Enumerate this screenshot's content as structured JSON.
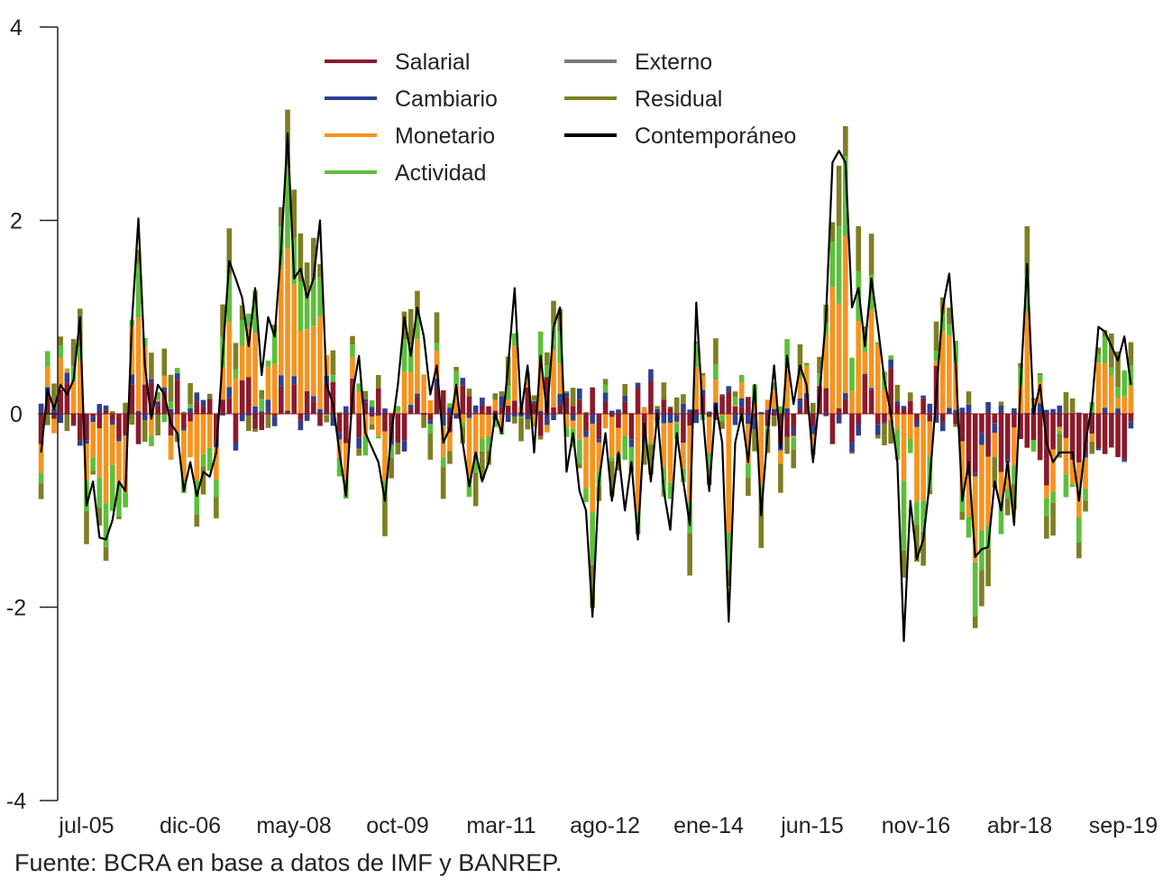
{
  "chart_data": {
    "type": "bar",
    "subtype": "stacked-bar-with-line",
    "y_axis": {
      "ticks": [
        4,
        2,
        0,
        -2,
        -4
      ],
      "ylim": [
        -4,
        4
      ]
    },
    "x_axis": {
      "tick_labels": [
        "jul-05",
        "dic-06",
        "may-08",
        "oct-09",
        "mar-11",
        "ago-12",
        "ene-14",
        "jun-15",
        "nov-16",
        "abr-18",
        "sep-19"
      ]
    },
    "legend_placement": "top-center",
    "grid": false,
    "legend": [
      {
        "key": "salarial",
        "label": "Salarial",
        "color": "#8b1a2b"
      },
      {
        "key": "cambiario",
        "label": "Cambiario",
        "color": "#2f3f8f"
      },
      {
        "key": "monetario",
        "label": "Monetario",
        "color": "#f7931e"
      },
      {
        "key": "actividad",
        "label": "Actividad",
        "color": "#5cbf3a"
      },
      {
        "key": "externo",
        "label": "Externo",
        "color": "#7a7a7a"
      },
      {
        "key": "residual",
        "label": "Residual",
        "color": "#7d7f22"
      },
      {
        "key": "contemporaneo",
        "label": "Contemporáneo",
        "color": "#000000"
      }
    ],
    "contemporaneo_line": [
      -0.4,
      0.25,
      0.05,
      0.3,
      0.2,
      0.35,
      1.0,
      -0.95,
      -0.7,
      -1.28,
      -1.3,
      -1.1,
      -0.7,
      -0.8,
      0.95,
      2.02,
      0.5,
      -0.05,
      0.3,
      0.2,
      -0.1,
      -0.2,
      -0.8,
      -0.5,
      -0.85,
      -0.6,
      -0.65,
      -0.4,
      0.6,
      1.58,
      1.4,
      1.2,
      0.7,
      1.3,
      0.4,
      1.0,
      0.8,
      1.7,
      2.9,
      1.4,
      1.5,
      1.2,
      1.4,
      2.0,
      0.3,
      0.1,
      -0.4,
      -0.85,
      0.2,
      0.6,
      -0.2,
      -0.35,
      -0.5,
      -0.9,
      -0.2,
      0.3,
      1.0,
      0.6,
      1.1,
      0.8,
      0.2,
      0.5,
      -0.3,
      -0.15,
      0.3,
      -0.3,
      -0.75,
      -0.4,
      -0.7,
      -0.5,
      0.0,
      -0.2,
      0.5,
      1.3,
      0.0,
      0.5,
      -0.4,
      0.6,
      0.0,
      0.9,
      1.1,
      -0.6,
      -0.2,
      -0.8,
      -1.0,
      -2.1,
      -0.7,
      -0.2,
      -0.9,
      -0.4,
      -1.0,
      -0.5,
      -1.3,
      -0.1,
      -0.7,
      0.0,
      -0.8,
      -1.2,
      -0.2,
      -0.7,
      -1.15,
      1.15,
      0.0,
      -0.8,
      0.1,
      -0.3,
      -2.15,
      -0.3,
      0.0,
      -0.5,
      0.3,
      -1.05,
      -0.2,
      0.5,
      -0.35,
      0.6,
      0.1,
      0.5,
      0.3,
      -0.5,
      0.2,
      1.0,
      2.6,
      2.72,
      2.6,
      1.1,
      1.3,
      0.7,
      1.4,
      0.9,
      0.35,
      0.0,
      -0.5,
      -2.35,
      -0.9,
      -1.5,
      -1.3,
      -0.7,
      0.2,
      1.1,
      1.45,
      0.5,
      -0.9,
      -0.5,
      -1.48,
      -1.4,
      -1.38,
      -0.7,
      -1.0,
      -0.5,
      -1.15,
      0.3,
      1.55,
      0.0,
      0.3,
      -0.3,
      -0.5,
      -0.4,
      -0.4,
      -0.4,
      -0.9,
      -0.3,
      0.1,
      0.9,
      0.85,
      0.7,
      0.55,
      0.8,
      0.3
    ]
  },
  "source_note": "Fuente: BCRA en base a datos de IMF y BANREP."
}
